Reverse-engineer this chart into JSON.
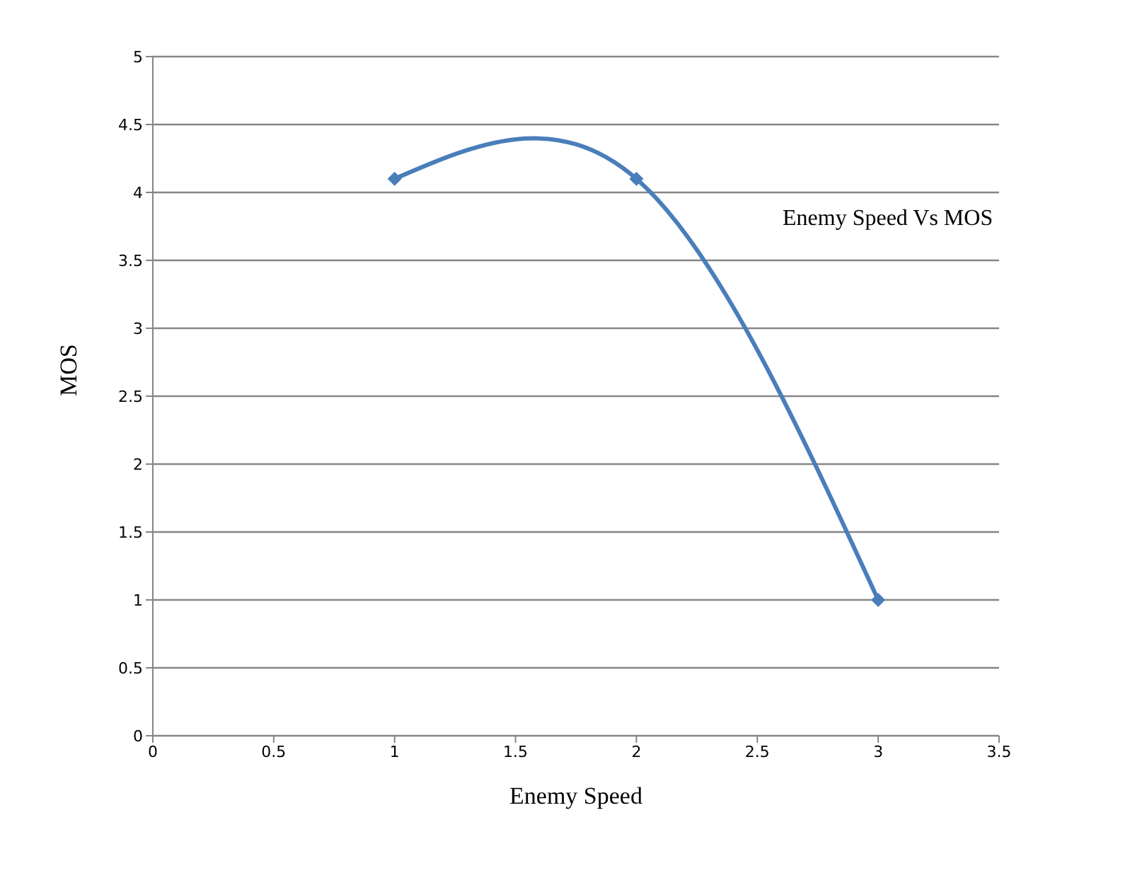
{
  "chart_data": {
    "type": "line",
    "xlabel": "Enemy Speed",
    "ylabel": "MOS",
    "x": [
      1,
      2,
      3
    ],
    "series": [
      {
        "name": "Enemy Speed Vs MOS",
        "color": "#4a7ebb",
        "values": [
          4.1,
          4.1,
          1
        ]
      }
    ],
    "xlim": [
      0,
      3.5
    ],
    "xticks": [
      0,
      0.5,
      1,
      1.5,
      2,
      2.5,
      3,
      3.5
    ],
    "ylim": [
      0,
      5
    ],
    "yticks": [
      0,
      0.5,
      1,
      1.5,
      2,
      2.5,
      3,
      3.5,
      4,
      4.5,
      5
    ],
    "grid": "y",
    "legend": "right",
    "marker": "diamond",
    "line_style": "solid"
  }
}
